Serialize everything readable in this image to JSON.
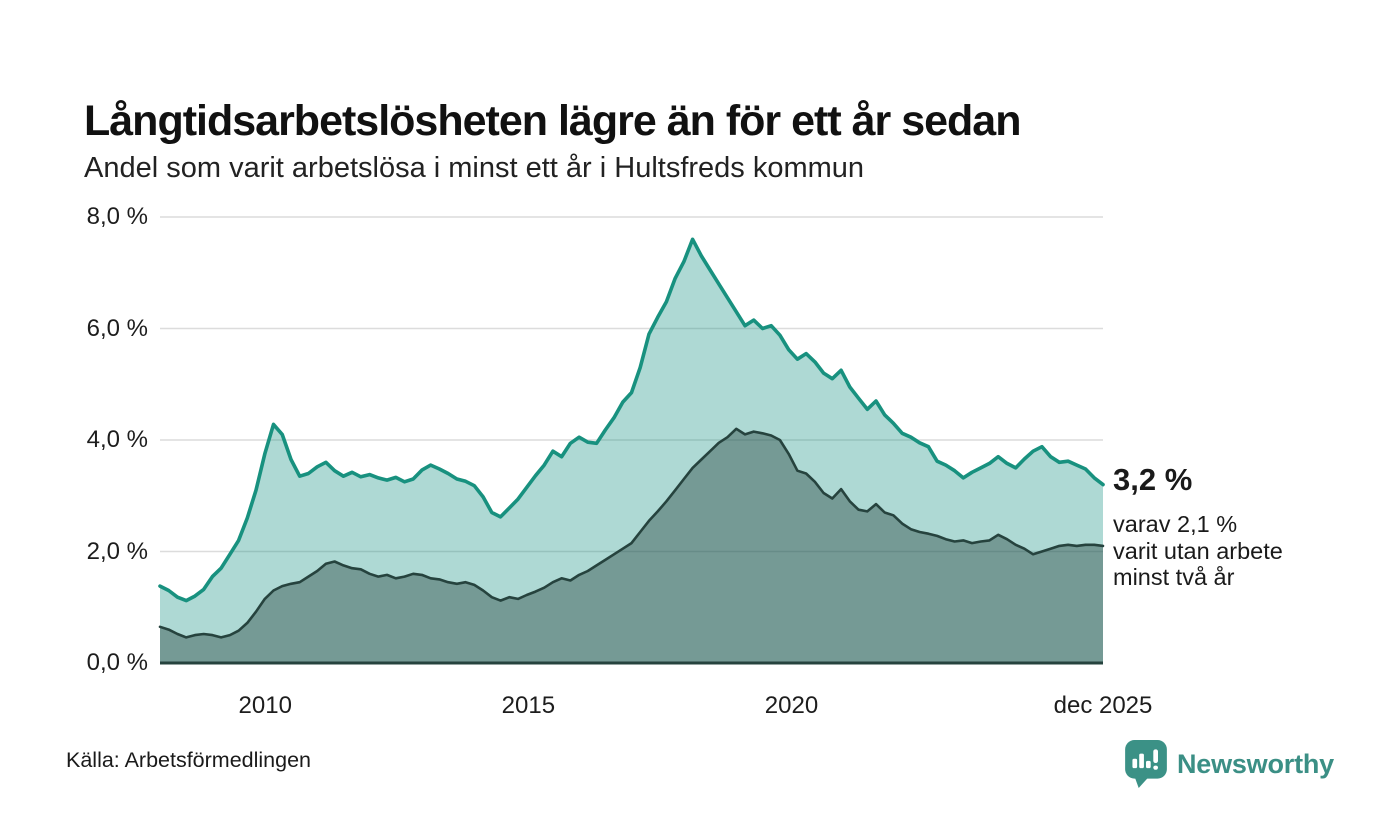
{
  "header": {
    "title": "Långtidsarbetslösheten lägre än för ett år sedan",
    "subtitle": "Andel som varit arbetslösa i minst ett år i Hultsfreds kommun"
  },
  "annotation": {
    "value_label": "3,2 %",
    "detail_lines": [
      "varav 2,1 %",
      "varit utan arbete",
      "minst två år"
    ]
  },
  "footer": {
    "source": "Källa: Arbetsförmedlingen",
    "brand_name": "Newsworthy"
  },
  "colors": {
    "title_text": "#111111",
    "body_text": "#1d1d1d",
    "gridline": "#dcdcdc",
    "series_one_year_line": "#18917f",
    "series_one_year_fill": "rgba(24,145,131,0.35)",
    "series_two_year_line": "#26433e",
    "series_two_year_fill": "rgba(38,67,62,0.42)",
    "baseline": "#26433e",
    "brand_teal": "#3b9186"
  },
  "chart_data": {
    "type": "area",
    "title": "Långtidsarbetslösheten lägre än för ett år sedan",
    "subtitle": "Andel som varit arbetslösa i minst ett år i Hultsfreds kommun",
    "unit": "%",
    "x_range": [
      2008.0,
      2025.92
    ],
    "y_range": [
      0,
      8
    ],
    "grid": "horizontal",
    "legend": "none (annotated at line end)",
    "y_ticks": [
      {
        "value": 0,
        "label": "0,0 %"
      },
      {
        "value": 2,
        "label": "2,0 %"
      },
      {
        "value": 4,
        "label": "4,0 %"
      },
      {
        "value": 6,
        "label": "6,0 %"
      },
      {
        "value": 8,
        "label": "8,0 %"
      }
    ],
    "x_ticks": [
      {
        "year": 2010,
        "label": "2010"
      },
      {
        "year": 2015,
        "label": "2015"
      },
      {
        "year": 2020,
        "label": "2020"
      },
      {
        "year": 2025.92,
        "label": "dec 2025"
      }
    ],
    "points_evenly_spaced_over_x_range": true,
    "series": [
      {
        "name": "Andel arbetslösa minst ett år",
        "latest_label": "3,2 %",
        "latest_value": 3.2,
        "values": [
          1.38,
          1.3,
          1.18,
          1.12,
          1.2,
          1.32,
          1.55,
          1.7,
          1.95,
          2.2,
          2.6,
          3.1,
          3.75,
          4.28,
          4.1,
          3.65,
          3.35,
          3.4,
          3.52,
          3.6,
          3.45,
          3.35,
          3.42,
          3.34,
          3.38,
          3.32,
          3.28,
          3.33,
          3.25,
          3.3,
          3.46,
          3.55,
          3.48,
          3.4,
          3.3,
          3.26,
          3.18,
          2.98,
          2.7,
          2.62,
          2.78,
          2.94,
          3.15,
          3.36,
          3.55,
          3.8,
          3.7,
          3.94,
          4.05,
          3.96,
          3.94,
          4.18,
          4.4,
          4.68,
          4.85,
          5.3,
          5.9,
          6.2,
          6.48,
          6.9,
          7.2,
          7.6,
          7.3,
          7.05,
          6.8,
          6.55,
          6.3,
          6.05,
          6.15,
          6.0,
          6.05,
          5.88,
          5.62,
          5.45,
          5.55,
          5.4,
          5.2,
          5.1,
          5.25,
          4.95,
          4.75,
          4.55,
          4.7,
          4.45,
          4.3,
          4.12,
          4.05,
          3.95,
          3.88,
          3.62,
          3.55,
          3.45,
          3.32,
          3.42,
          3.5,
          3.58,
          3.7,
          3.58,
          3.5,
          3.66,
          3.8,
          3.88,
          3.7,
          3.6,
          3.62,
          3.55,
          3.48,
          3.32,
          3.2
        ]
      },
      {
        "name": "varav utan arbete minst två år",
        "latest_label": "2,1 %",
        "latest_value": 2.1,
        "values": [
          0.65,
          0.6,
          0.52,
          0.46,
          0.5,
          0.52,
          0.5,
          0.46,
          0.5,
          0.58,
          0.72,
          0.92,
          1.15,
          1.3,
          1.38,
          1.42,
          1.45,
          1.55,
          1.65,
          1.78,
          1.82,
          1.75,
          1.7,
          1.68,
          1.6,
          1.55,
          1.58,
          1.52,
          1.55,
          1.6,
          1.58,
          1.52,
          1.5,
          1.45,
          1.42,
          1.45,
          1.4,
          1.3,
          1.18,
          1.12,
          1.18,
          1.15,
          1.22,
          1.28,
          1.35,
          1.45,
          1.52,
          1.48,
          1.58,
          1.65,
          1.75,
          1.85,
          1.95,
          2.05,
          2.15,
          2.35,
          2.55,
          2.72,
          2.9,
          3.1,
          3.3,
          3.5,
          3.65,
          3.8,
          3.95,
          4.05,
          4.2,
          4.1,
          4.15,
          4.12,
          4.08,
          4.0,
          3.75,
          3.45,
          3.4,
          3.25,
          3.05,
          2.95,
          3.12,
          2.9,
          2.75,
          2.72,
          2.85,
          2.7,
          2.65,
          2.5,
          2.4,
          2.35,
          2.32,
          2.28,
          2.22,
          2.18,
          2.2,
          2.15,
          2.18,
          2.2,
          2.3,
          2.22,
          2.12,
          2.05,
          1.95,
          2.0,
          2.05,
          2.1,
          2.12,
          2.1,
          2.12,
          2.12,
          2.1
        ]
      }
    ]
  }
}
